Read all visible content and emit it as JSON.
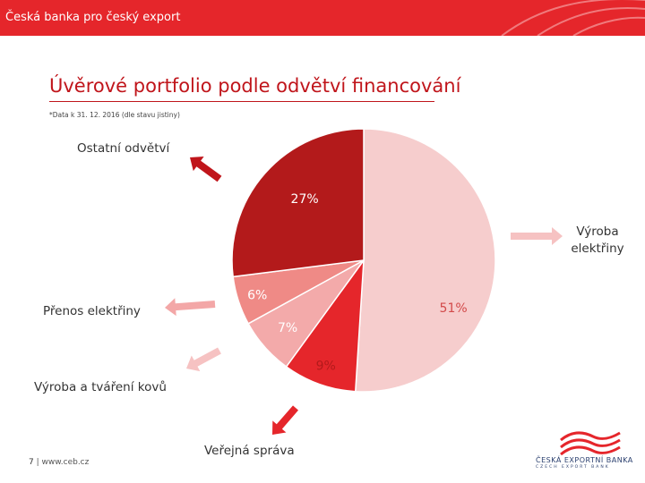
{
  "header": {
    "title": "Česká banka pro český export"
  },
  "slide": {
    "title": "Úvěrové portfolio podle odvětví financování",
    "note": "*Data k 31. 12. 2016 (dle stavu jistiny)"
  },
  "chart_data": {
    "type": "pie",
    "title": "Úvěrové portfolio podle odvětví financování",
    "slices": [
      {
        "name": "Výroba elektřiny",
        "value": 51,
        "label": "51%",
        "color": "#f6cdcd"
      },
      {
        "name": "Veřejná správa",
        "value": 9,
        "label": "9%",
        "color": "#e5262b"
      },
      {
        "name": "Výroba a tváření kovů",
        "value": 7,
        "label": "7%",
        "color": "#f3aaaa"
      },
      {
        "name": "Přenos elektřiny",
        "value": 6,
        "label": "6%",
        "color": "#ef8a86"
      },
      {
        "name": "Ostatní odvětví",
        "value": 27,
        "label": "27%",
        "color": "#b31a1b"
      }
    ],
    "legend": "callouts",
    "arrow_colors": {
      "dark": "#c0151b",
      "medium": "#e5262b",
      "light": "#f3a7a7",
      "lighter": "#f6c2c2"
    }
  },
  "footer": {
    "page": "7",
    "separator": " | ",
    "url": "www.ceb.cz"
  },
  "logo": {
    "name": "ČESKÁ EXPORTNÍ BANKA",
    "tagline": "CZECH EXPORT BANK"
  }
}
